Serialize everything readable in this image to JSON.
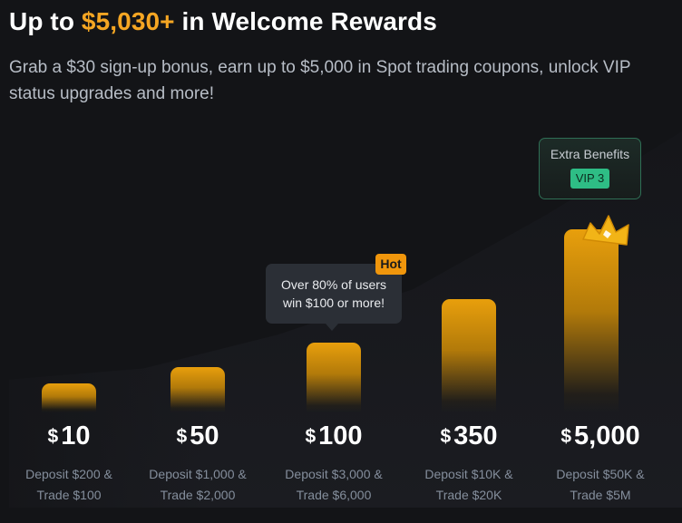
{
  "header": {
    "title_prefix": "Up to ",
    "title_amount": "$5,030+",
    "title_suffix": " in Welcome Rewards",
    "subtitle": "Grab a $30 sign-up bonus, earn up to $5,000 in Spot trading coupons, unlock VIP status upgrades and more!"
  },
  "colors": {
    "accent": "#F5A623",
    "bar": "#E89F0C",
    "vip_badge": "#2EBD85",
    "hot_badge": "#F0960C"
  },
  "tiers": [
    {
      "currency": "$",
      "amount": "10",
      "line1": "Deposit $200 &",
      "line2": "Trade $100"
    },
    {
      "currency": "$",
      "amount": "50",
      "line1": "Deposit $1,000 &",
      "line2": "Trade $2,000"
    },
    {
      "currency": "$",
      "amount": "100",
      "line1": "Deposit $3,000 &",
      "line2": "Trade $6,000"
    },
    {
      "currency": "$",
      "amount": "350",
      "line1": "Deposit $10K &",
      "line2": "Trade $20K"
    },
    {
      "currency": "$",
      "amount": "5,000",
      "line1": "Deposit $50K &",
      "line2": "Trade $5M"
    }
  ],
  "tooltip": {
    "line1": "Over 80% of users",
    "line2": "win $100 or more!",
    "badge": "Hot"
  },
  "extra_benefits": {
    "label": "Extra Benefits",
    "badge": "VIP 3"
  },
  "icons": {
    "crown": "crown-icon"
  }
}
